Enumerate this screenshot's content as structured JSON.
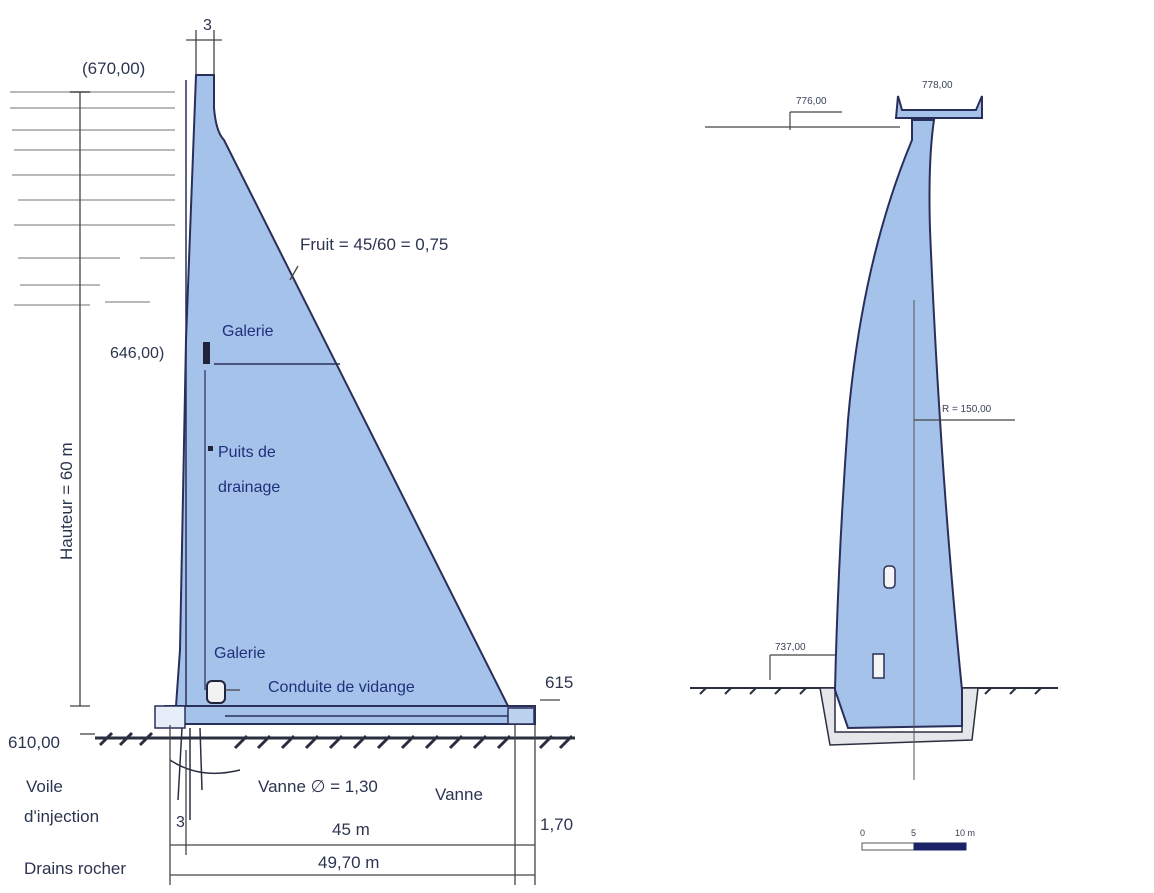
{
  "left_section": {
    "crest_width": "3",
    "crest_elevation": "(670,00)",
    "height_label": "Hauteur = 60 m",
    "slope_label": "Fruit = 45/60 = 0,75",
    "gallery_upper": "Galerie",
    "water_level": "646,00)",
    "drainage_well_line1": "Puits de",
    "drainage_well_line2": "drainage",
    "gallery_lower": "Galerie",
    "drain_conduit": "Conduite de vidange",
    "downstream_elevation": "615",
    "foundation_elevation": "610,00",
    "grout_curtain_line1": "Voile",
    "grout_curtain_line2": "d'injection",
    "valve_main": "Vanne ∅ = 1,30",
    "valve_small": "Vanne",
    "dim_heel": "3",
    "dim_45": "45 m",
    "dim_toe": "1,70",
    "dim_total": "49,70 m",
    "rock_drains": "Drains rocher"
  },
  "right_section": {
    "crest_elevation": "778,00",
    "water_level": "776,00",
    "radius": "R = 150,00",
    "base_elevation": "737,00",
    "scale_0": "0",
    "scale_5": "5",
    "scale_10": "10 m"
  },
  "colors": {
    "concrete_fill": "#a5c3ea",
    "outline": "#2a2f5a",
    "dimension": "#444444",
    "ground": "#2a2f40"
  }
}
